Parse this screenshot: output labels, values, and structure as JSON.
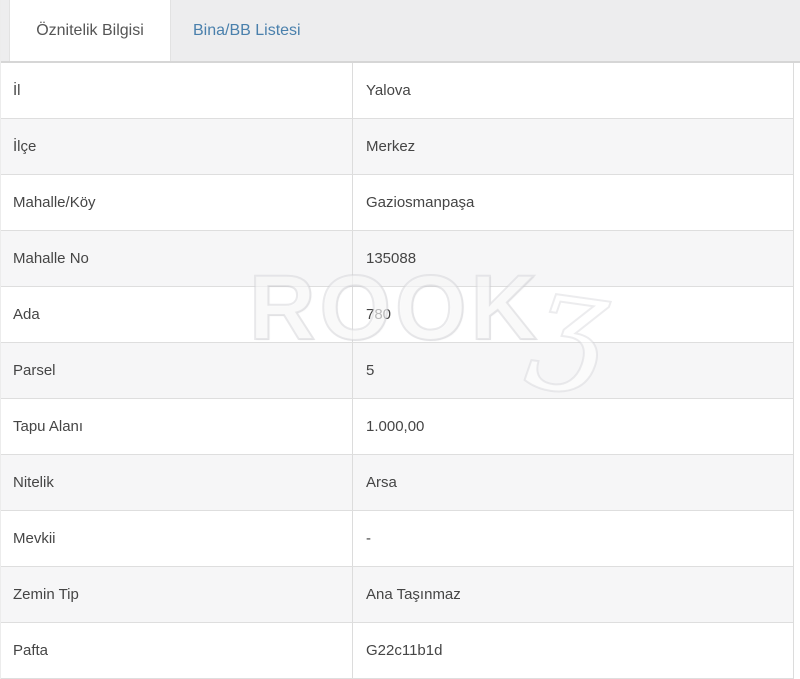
{
  "tabs": [
    {
      "label": "Öznitelik Bilgisi",
      "active": true
    },
    {
      "label": "Bina/BB Listesi",
      "active": false
    }
  ],
  "table": {
    "rows": [
      {
        "label": "İl",
        "value": "Yalova"
      },
      {
        "label": "İlçe",
        "value": "Merkez"
      },
      {
        "label": "Mahalle/Köy",
        "value": "Gaziosmanpaşa"
      },
      {
        "label": "Mahalle No",
        "value": "135088"
      },
      {
        "label": "Ada",
        "value": "780"
      },
      {
        "label": "Parsel",
        "value": "5"
      },
      {
        "label": "Tapu Alanı",
        "value": "1.000,00"
      },
      {
        "label": "Nitelik",
        "value": "Arsa"
      },
      {
        "label": "Mevkii",
        "value": "-"
      },
      {
        "label": "Zemin Tip",
        "value": "Ana Taşınmaz"
      },
      {
        "label": "Pafta",
        "value": "G22c11b1d"
      }
    ]
  },
  "watermark": {
    "text": "ROOK",
    "glyph": "ʒ"
  },
  "colors": {
    "tabbar_bg": "#ededee",
    "tab_active_text": "#555555",
    "tab_inactive_text": "#4a80ac",
    "row_alt_bg": "#f6f6f7",
    "border": "#dcdcdc",
    "text": "#454545"
  }
}
